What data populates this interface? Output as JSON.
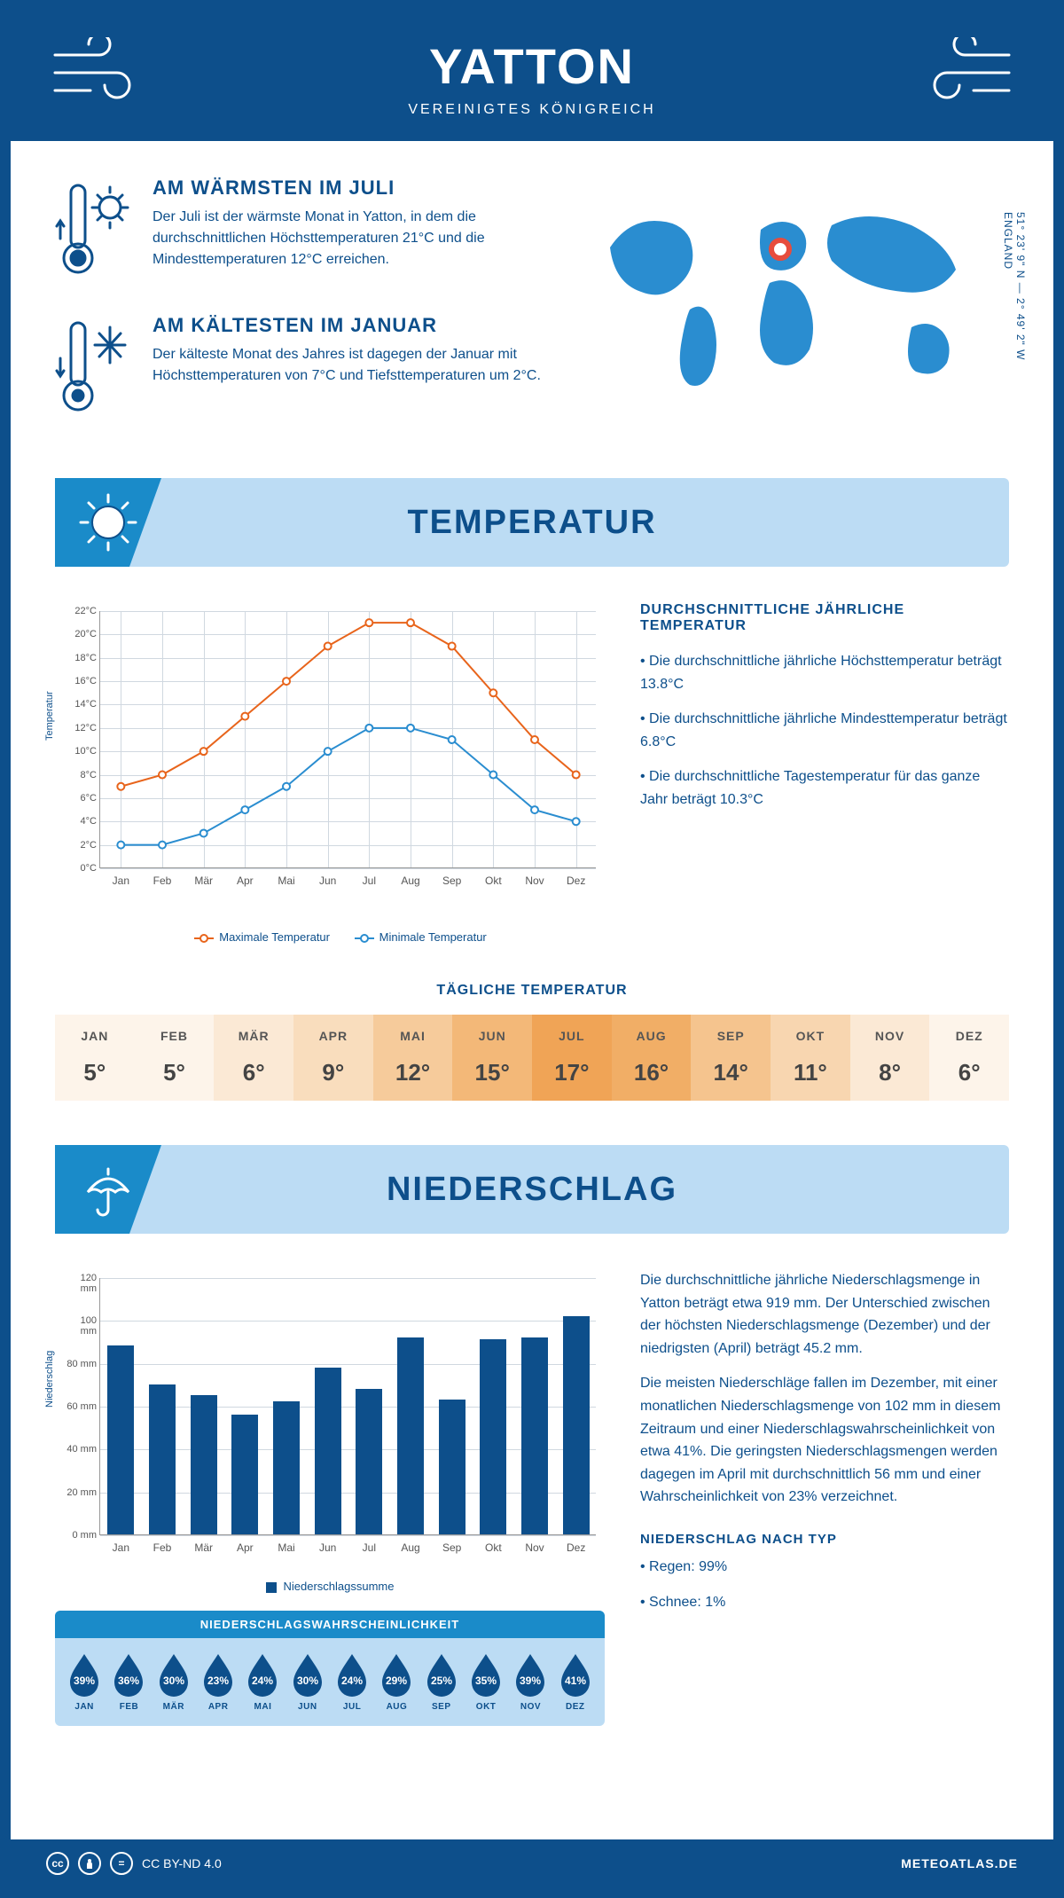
{
  "colors": {
    "primary": "#0d4f8b",
    "accent": "#1a8bc9",
    "light": "#bcdcf4",
    "map": "#2a8dd0",
    "marker": "#e74c3c",
    "max_line": "#e8641b",
    "min_line": "#2a8dd0",
    "grid": "#d0d8e0"
  },
  "header": {
    "title": "YATTON",
    "subtitle": "VEREINIGTES KÖNIGREICH"
  },
  "coords": {
    "line1": "51° 23' 9\" N — 2° 49' 2\" W",
    "line2": "ENGLAND"
  },
  "warm": {
    "title": "AM WÄRMSTEN IM JULI",
    "text": "Der Juli ist der wärmste Monat in Yatton, in dem die durchschnittlichen Höchsttemperaturen 21°C und die Mindesttemperaturen 12°C erreichen."
  },
  "cold": {
    "title": "AM KÄLTESTEN IM JANUAR",
    "text": "Der kälteste Monat des Jahres ist dagegen der Januar mit Höchsttemperaturen von 7°C und Tiefsttemperaturen um 2°C."
  },
  "temp_section": {
    "title": "TEMPERATUR"
  },
  "temp_chart": {
    "months": [
      "Jan",
      "Feb",
      "Mär",
      "Apr",
      "Mai",
      "Jun",
      "Jul",
      "Aug",
      "Sep",
      "Okt",
      "Nov",
      "Dez"
    ],
    "max": [
      7,
      8,
      10,
      13,
      16,
      19,
      21,
      21,
      19,
      15,
      11,
      8
    ],
    "min": [
      2,
      2,
      3,
      5,
      7,
      10,
      12,
      12,
      11,
      8,
      5,
      4
    ],
    "ylim": [
      0,
      22
    ],
    "ytick": 2,
    "yunit": "°C",
    "ylabel": "Temperatur",
    "legend_max": "Maximale Temperatur",
    "legend_min": "Minimale Temperatur"
  },
  "temp_text": {
    "title": "DURCHSCHNITTLICHE JÄHRLICHE TEMPERATUR",
    "items": [
      "Die durchschnittliche jährliche Höchsttemperatur beträgt 13.8°C",
      "Die durchschnittliche jährliche Mindesttemperatur beträgt 6.8°C",
      "Die durchschnittliche Tagestemperatur für das ganze Jahr beträgt 10.3°C"
    ]
  },
  "daily": {
    "title": "TÄGLICHE TEMPERATUR",
    "months": [
      "JAN",
      "FEB",
      "MÄR",
      "APR",
      "MAI",
      "JUN",
      "JUL",
      "AUG",
      "SEP",
      "OKT",
      "NOV",
      "DEZ"
    ],
    "values": [
      "5°",
      "5°",
      "6°",
      "9°",
      "12°",
      "15°",
      "17°",
      "16°",
      "14°",
      "11°",
      "8°",
      "6°"
    ],
    "bg": [
      "#fdf4ea",
      "#fdf4ea",
      "#fbe9d5",
      "#f9ddbd",
      "#f6cb9b",
      "#f3b878",
      "#f0a456",
      "#f1ae66",
      "#f5c48e",
      "#f8d6b0",
      "#fbe9d5",
      "#fdf4ea"
    ]
  },
  "precip_section": {
    "title": "NIEDERSCHLAG"
  },
  "precip_chart": {
    "months": [
      "Jan",
      "Feb",
      "Mär",
      "Apr",
      "Mai",
      "Jun",
      "Jul",
      "Aug",
      "Sep",
      "Okt",
      "Nov",
      "Dez"
    ],
    "values": [
      88,
      70,
      65,
      56,
      62,
      78,
      68,
      92,
      63,
      91,
      92,
      102
    ],
    "ylim": [
      0,
      120
    ],
    "ytick": 20,
    "yunit": " mm",
    "ylabel": "Niederschlag",
    "legend": "Niederschlagssumme"
  },
  "precip_text": {
    "p1": "Die durchschnittliche jährliche Niederschlagsmenge in Yatton beträgt etwa 919 mm. Der Unterschied zwischen der höchsten Niederschlagsmenge (Dezember) und der niedrigsten (April) beträgt 45.2 mm.",
    "p2": "Die meisten Niederschläge fallen im Dezember, mit einer monatlichen Niederschlagsmenge von 102 mm in diesem Zeitraum und einer Niederschlagswahrscheinlichkeit von etwa 41%. Die geringsten Niederschlagsmengen werden dagegen im April mit durchschnittlich 56 mm und einer Wahrscheinlichkeit von 23% verzeichnet.",
    "type_title": "NIEDERSCHLAG NACH TYP",
    "type_items": [
      "Regen: 99%",
      "Schnee: 1%"
    ]
  },
  "prob": {
    "title": "NIEDERSCHLAGSWAHRSCHEINLICHKEIT",
    "months": [
      "JAN",
      "FEB",
      "MÄR",
      "APR",
      "MAI",
      "JUN",
      "JUL",
      "AUG",
      "SEP",
      "OKT",
      "NOV",
      "DEZ"
    ],
    "values": [
      "39%",
      "36%",
      "30%",
      "23%",
      "24%",
      "30%",
      "24%",
      "29%",
      "25%",
      "35%",
      "39%",
      "41%"
    ]
  },
  "footer": {
    "license": "CC BY-ND 4.0",
    "site": "METEOATLAS.DE"
  }
}
